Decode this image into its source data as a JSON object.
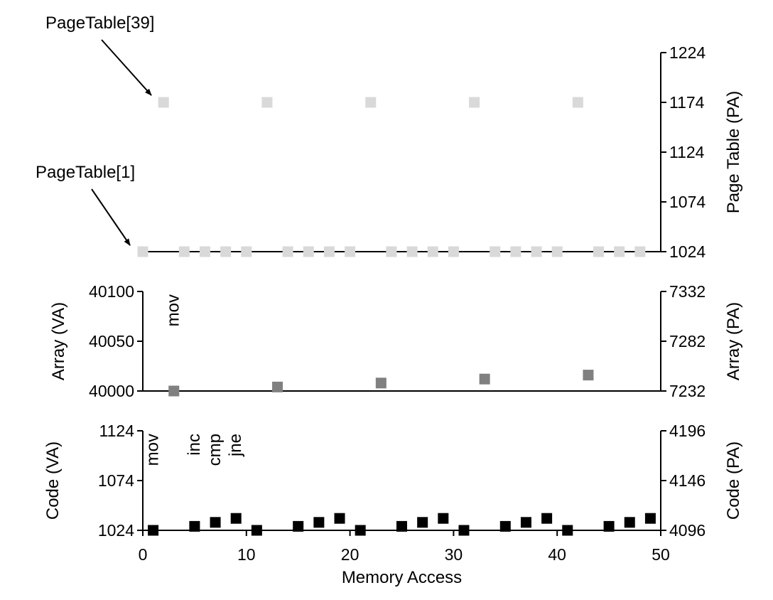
{
  "chart_data": [
    {
      "type": "scatter",
      "panel": "page-table",
      "x_axis": {
        "xlim": [
          0,
          50
        ],
        "ticks": [],
        "visible": false
      },
      "right_axis": {
        "label": "Page Table (PA)",
        "ylim": [
          1024,
          1224
        ],
        "ticks": [
          "1024",
          "1074",
          "1124",
          "1174",
          "1224"
        ]
      },
      "annotations": [
        {
          "text": "PageTable[39]",
          "points_to": {
            "x": 2,
            "y": 1174
          }
        },
        {
          "text": "PageTable[1]",
          "points_to": {
            "x": 0,
            "y": 1024
          }
        }
      ],
      "series": [
        {
          "color": "#d9d9d9",
          "marker": "square",
          "points": [
            {
              "x": 0,
              "y": 1024
            },
            {
              "x": 2,
              "y": 1174
            },
            {
              "x": 4,
              "y": 1024
            },
            {
              "x": 6,
              "y": 1024
            },
            {
              "x": 8,
              "y": 1024
            },
            {
              "x": 10,
              "y": 1024
            },
            {
              "x": 12,
              "y": 1174
            },
            {
              "x": 14,
              "y": 1024
            },
            {
              "x": 16,
              "y": 1024
            },
            {
              "x": 18,
              "y": 1024
            },
            {
              "x": 20,
              "y": 1024
            },
            {
              "x": 22,
              "y": 1174
            },
            {
              "x": 24,
              "y": 1024
            },
            {
              "x": 26,
              "y": 1024
            },
            {
              "x": 28,
              "y": 1024
            },
            {
              "x": 30,
              "y": 1024
            },
            {
              "x": 32,
              "y": 1174
            },
            {
              "x": 34,
              "y": 1024
            },
            {
              "x": 36,
              "y": 1024
            },
            {
              "x": 38,
              "y": 1024
            },
            {
              "x": 40,
              "y": 1024
            },
            {
              "x": 42,
              "y": 1174
            },
            {
              "x": 44,
              "y": 1024
            },
            {
              "x": 46,
              "y": 1024
            },
            {
              "x": 48,
              "y": 1024
            }
          ]
        }
      ]
    },
    {
      "type": "scatter",
      "panel": "array",
      "x_axis": {
        "xlim": [
          0,
          50
        ],
        "ticks": [],
        "visible": false
      },
      "left_axis": {
        "label": "Array (VA)",
        "ylim": [
          40000,
          40100
        ],
        "ticks": [
          "40000",
          "40050",
          "40100"
        ]
      },
      "right_axis": {
        "label": "Array (PA)",
        "ylim": [
          7232,
          7332
        ],
        "ticks": [
          "7232",
          "7282",
          "7332"
        ]
      },
      "annotations": [
        {
          "text": "mov",
          "x": 3,
          "rotated": true
        }
      ],
      "series": [
        {
          "color": "#808080",
          "marker": "square",
          "points": [
            {
              "x": 3,
              "y": 40000
            },
            {
              "x": 13,
              "y": 40004
            },
            {
              "x": 23,
              "y": 40008
            },
            {
              "x": 33,
              "y": 40012
            },
            {
              "x": 43,
              "y": 40016
            }
          ]
        }
      ]
    },
    {
      "type": "scatter",
      "panel": "code",
      "x_axis": {
        "label": "Memory Access",
        "xlim": [
          0,
          50
        ],
        "ticks": [
          "0",
          "10",
          "20",
          "30",
          "40",
          "50"
        ]
      },
      "left_axis": {
        "label": "Code (VA)",
        "ylim": [
          1024,
          1124
        ],
        "ticks": [
          "1024",
          "1074",
          "1124"
        ]
      },
      "right_axis": {
        "label": "Code (PA)",
        "ylim": [
          4096,
          4196
        ],
        "ticks": [
          "4096",
          "4146",
          "4196"
        ]
      },
      "annotations": [
        {
          "text": "mov",
          "x": 1,
          "rotated": true
        },
        {
          "text": "inc",
          "x": 5,
          "rotated": true
        },
        {
          "text": "cmp",
          "x": 7,
          "rotated": true
        },
        {
          "text": "jne",
          "x": 9,
          "rotated": true
        }
      ],
      "series": [
        {
          "color": "#000000",
          "marker": "square",
          "points": [
            {
              "x": 1,
              "y": 1024
            },
            {
              "x": 5,
              "y": 1028
            },
            {
              "x": 7,
              "y": 1032
            },
            {
              "x": 9,
              "y": 1036
            },
            {
              "x": 11,
              "y": 1024
            },
            {
              "x": 15,
              "y": 1028
            },
            {
              "x": 17,
              "y": 1032
            },
            {
              "x": 19,
              "y": 1036
            },
            {
              "x": 21,
              "y": 1024
            },
            {
              "x": 25,
              "y": 1028
            },
            {
              "x": 27,
              "y": 1032
            },
            {
              "x": 29,
              "y": 1036
            },
            {
              "x": 31,
              "y": 1024
            },
            {
              "x": 35,
              "y": 1028
            },
            {
              "x": 37,
              "y": 1032
            },
            {
              "x": 39,
              "y": 1036
            },
            {
              "x": 41,
              "y": 1024
            },
            {
              "x": 45,
              "y": 1028
            },
            {
              "x": 47,
              "y": 1032
            },
            {
              "x": 49,
              "y": 1036
            }
          ]
        }
      ]
    }
  ]
}
